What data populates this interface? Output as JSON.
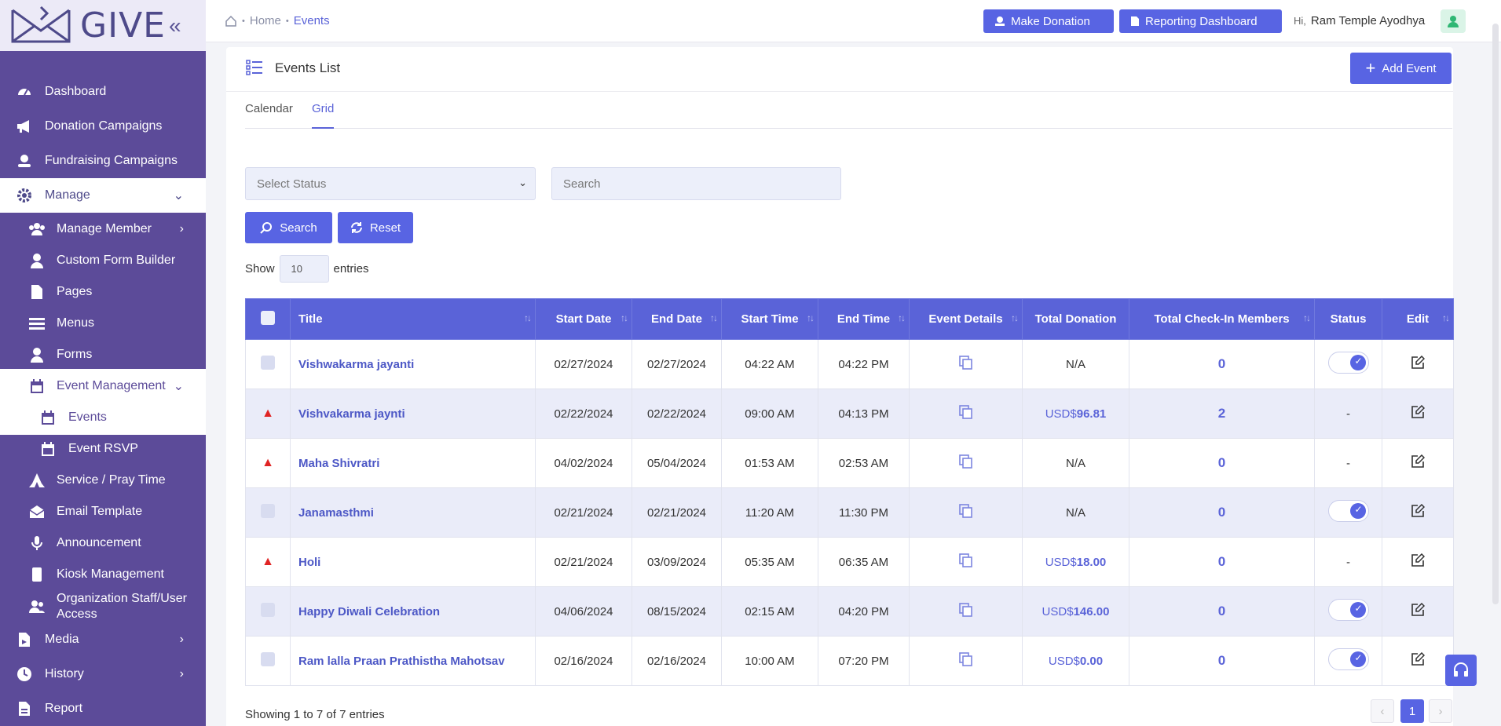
{
  "brand": {
    "name": "GIVE",
    "collapse": "«"
  },
  "sidebar": {
    "items": [
      {
        "label": "Dashboard",
        "icon": "dashboard-icon"
      },
      {
        "label": "Donation Campaigns",
        "icon": "megaphone-icon"
      },
      {
        "label": "Fundraising Campaigns",
        "icon": "hand-coin-icon"
      },
      {
        "label": "Manage",
        "icon": "gear-icon"
      },
      {
        "label": "Manage Member",
        "icon": "users-icon"
      },
      {
        "label": "Custom Form Builder",
        "icon": "user-icon"
      },
      {
        "label": "Pages",
        "icon": "page-icon"
      },
      {
        "label": "Menus",
        "icon": "menu-icon"
      },
      {
        "label": "Forms",
        "icon": "user-icon"
      },
      {
        "label": "Event Management",
        "icon": "calendar-icon"
      },
      {
        "label": "Events",
        "icon": "calendar-icon"
      },
      {
        "label": "Event RSVP",
        "icon": "calendar-icon"
      },
      {
        "label": "Service / Pray Time",
        "icon": "pray-icon"
      },
      {
        "label": "Email Template",
        "icon": "envelope-icon"
      },
      {
        "label": "Announcement",
        "icon": "microphone-icon"
      },
      {
        "label": "Kiosk Management",
        "icon": "kiosk-icon"
      },
      {
        "label": "Organization Staff/User Access",
        "icon": "users-icon"
      },
      {
        "label": "Media",
        "icon": "media-icon"
      },
      {
        "label": "History",
        "icon": "clock-icon"
      },
      {
        "label": "Report",
        "icon": "report-icon"
      }
    ]
  },
  "breadcrumb": {
    "home": "Home",
    "current": "Events"
  },
  "header": {
    "make_donation": "Make Donation",
    "reporting_dashboard": "Reporting Dashboard",
    "greeting": "Hi,",
    "user_name": "Ram Temple Ayodhya"
  },
  "page": {
    "title": "Events List",
    "add_event": "Add Event"
  },
  "tabs": [
    "Calendar",
    "Grid"
  ],
  "filters": {
    "status_placeholder": "Select Status",
    "search_placeholder": "Search",
    "search_button": "Search",
    "reset_button": "Reset"
  },
  "entries": {
    "show": "Show",
    "value": "10",
    "suffix": "entries"
  },
  "table": {
    "columns": [
      "Title",
      "Start Date",
      "End Date",
      "Start Time",
      "End Time",
      "Event Details",
      "Total Donation",
      "Total Check-In Members",
      "Status",
      "Edit"
    ],
    "rows": [
      {
        "flag": "checkbox",
        "title": "Vishwakarma jayanti",
        "start_date": "02/27/2024",
        "end_date": "02/27/2024",
        "start_time": "04:22 AM",
        "end_time": "04:22 PM",
        "donation_prefix": "",
        "donation": "N/A",
        "checkins": "0",
        "status": "on"
      },
      {
        "flag": "warning",
        "title": "Vishvakarma jaynti",
        "start_date": "02/22/2024",
        "end_date": "02/22/2024",
        "start_time": "09:00 AM",
        "end_time": "04:13 PM",
        "donation_prefix": "USD$",
        "donation": "96.81",
        "checkins": "2",
        "status": "-"
      },
      {
        "flag": "warning",
        "title": "Maha Shivratri",
        "start_date": "04/02/2024",
        "end_date": "05/04/2024",
        "start_time": "01:53 AM",
        "end_time": "02:53 AM",
        "donation_prefix": "",
        "donation": "N/A",
        "checkins": "0",
        "status": "-"
      },
      {
        "flag": "checkbox",
        "title": "Janamasthmi",
        "start_date": "02/21/2024",
        "end_date": "02/21/2024",
        "start_time": "11:20 AM",
        "end_time": "11:30 PM",
        "donation_prefix": "",
        "donation": "N/A",
        "checkins": "0",
        "status": "on"
      },
      {
        "flag": "warning",
        "title": "Holi",
        "start_date": "02/21/2024",
        "end_date": "03/09/2024",
        "start_time": "05:35 AM",
        "end_time": "06:35 AM",
        "donation_prefix": "USD$",
        "donation": "18.00",
        "checkins": "0",
        "status": "-"
      },
      {
        "flag": "checkbox",
        "title": "Happy Diwali Celebration",
        "start_date": "04/06/2024",
        "end_date": "08/15/2024",
        "start_time": "02:15 AM",
        "end_time": "04:20 PM",
        "donation_prefix": "USD$",
        "donation": "146.00",
        "checkins": "0",
        "status": "on"
      },
      {
        "flag": "checkbox",
        "title": "Ram lalla Praan Prathistha Mahotsav",
        "start_date": "02/16/2024",
        "end_date": "02/16/2024",
        "start_time": "10:00 AM",
        "end_time": "07:20 PM",
        "donation_prefix": "USD$",
        "donation": "0.00",
        "checkins": "0",
        "status": "on"
      }
    ]
  },
  "footer": {
    "showing": "Showing 1 to 7 of 7 entries",
    "prev": "‹",
    "page": "1",
    "next": "›"
  },
  "colors": {
    "sidebar": "#5c4b99",
    "accent": "#5864e3",
    "warning": "#e02424",
    "success": "#2fb774"
  }
}
